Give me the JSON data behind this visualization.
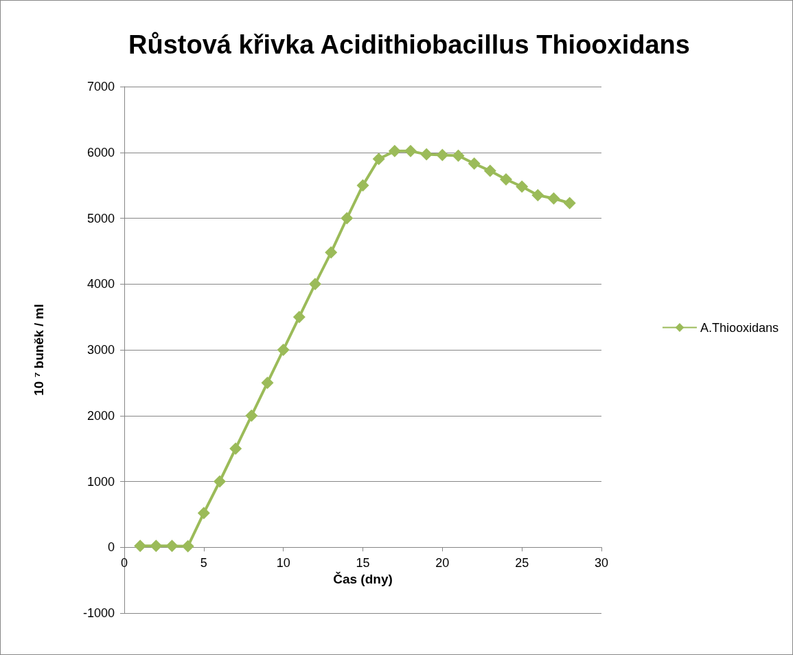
{
  "chart_data": {
    "type": "line",
    "title": "Růstová křivka Acidithiobacillus Thiooxidans",
    "xlabel": "Čas (dny)",
    "ylabel": "10 ⁷ buněk / ml",
    "x": [
      1,
      2,
      3,
      4,
      5,
      6,
      7,
      8,
      9,
      10,
      11,
      12,
      13,
      14,
      15,
      16,
      17,
      18,
      19,
      20,
      21,
      22,
      23,
      24,
      25,
      26,
      27,
      28
    ],
    "series": [
      {
        "name": "A.Thiooxidans",
        "color": "#9bbb59",
        "values": [
          20,
          20,
          20,
          15,
          520,
          1000,
          1500,
          2000,
          2500,
          3000,
          3500,
          4000,
          4480,
          5000,
          5500,
          5900,
          6020,
          6020,
          5970,
          5960,
          5950,
          5830,
          5720,
          5590,
          5480,
          5350,
          5300,
          5230
        ]
      }
    ],
    "xlim": [
      0,
      30
    ],
    "xticks": [
      0,
      5,
      10,
      15,
      20,
      25,
      30
    ],
    "ylim": [
      -1000,
      7000
    ],
    "yticks": [
      -1000,
      0,
      1000,
      2000,
      3000,
      4000,
      5000,
      6000,
      7000
    ],
    "grid": "y",
    "legend": "right",
    "marker": "diamond",
    "line_style": "solid"
  }
}
